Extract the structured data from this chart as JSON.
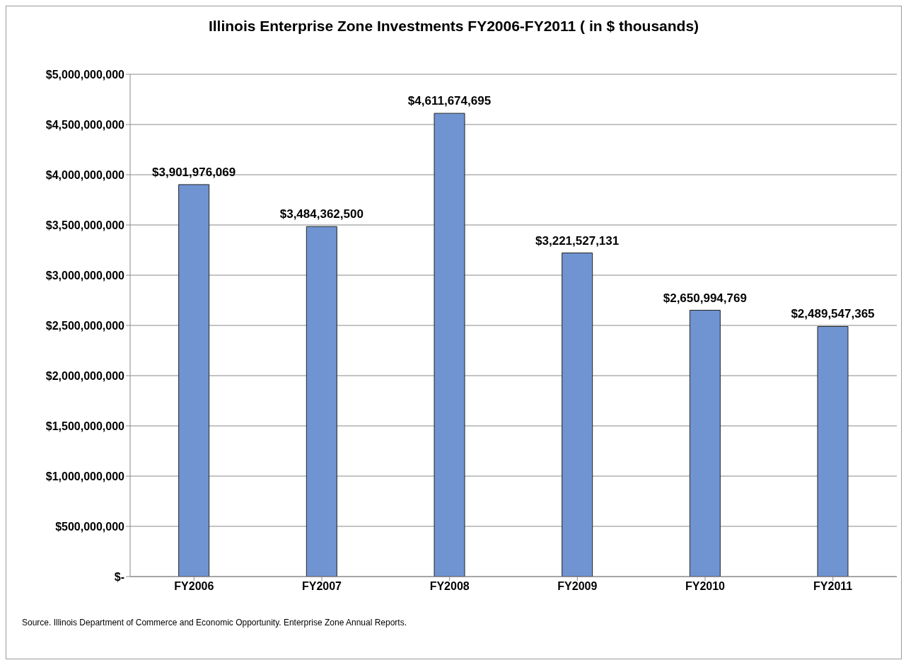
{
  "chart_data": {
    "type": "bar",
    "title": "Illinois Enterprise Zone Investments  FY2006-FY2011 ( in $ thousands)",
    "categories": [
      "FY2006",
      "FY2007",
      "FY2008",
      "FY2009",
      "FY2010",
      "FY2011"
    ],
    "values": [
      3901976069,
      3484362500,
      4611674695,
      3221527131,
      2650994769,
      2489547365
    ],
    "value_labels": [
      "$3,901,976,069",
      "$3,484,362,500",
      "$4,611,674,695",
      "$3,221,527,131",
      "$2,650,994,769",
      "$2,489,547,365"
    ],
    "color": "#7094d2",
    "ylim": [
      0,
      5000000000
    ],
    "yticks": [
      {
        "value": 0,
        "label": "$-"
      },
      {
        "value": 500000000,
        "label": "$500,000,000"
      },
      {
        "value": 1000000000,
        "label": "$1,000,000,000"
      },
      {
        "value": 1500000000,
        "label": "$1,500,000,000"
      },
      {
        "value": 2000000000,
        "label": "$2,000,000,000"
      },
      {
        "value": 2500000000,
        "label": "$2,500,000,000"
      },
      {
        "value": 3000000000,
        "label": "$3,000,000,000"
      },
      {
        "value": 3500000000,
        "label": "$3,500,000,000"
      },
      {
        "value": 4000000000,
        "label": "$4,000,000,000"
      },
      {
        "value": 4500000000,
        "label": "$4,500,000,000"
      },
      {
        "value": 5000000000,
        "label": "$5,000,000,000"
      }
    ],
    "grid": "y",
    "annotations": [
      "Source. Illinois Department of Commerce and Economic Opportunity.  Enterprise Zone Annual Reports."
    ]
  }
}
